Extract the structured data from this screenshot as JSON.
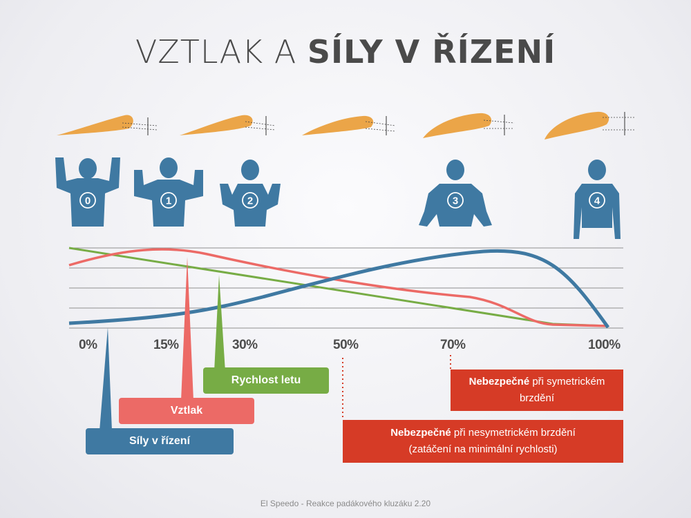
{
  "title": {
    "light": "VZTLAK A ",
    "bold": "SÍLY V ŘÍZENÍ"
  },
  "brake_positions": [
    "0",
    "1",
    "2",
    "3",
    "4"
  ],
  "percent_labels": [
    "0%",
    "15%",
    "30%",
    "50%",
    "70%",
    "100%"
  ],
  "callouts": {
    "rychlost": "Rychlost letu",
    "vztlak": "Vztlak",
    "sily": "Síly v řízení"
  },
  "warnings": {
    "symmetric": {
      "bold": "Nebezpečné",
      "line1": " při symetrickém",
      "line2": "brzdění"
    },
    "asymmetric": {
      "bold": "Nebezpečné",
      "line1": " při nesymetrickém brzdění",
      "line2": "(zatáčení na minimální rychlosti)"
    }
  },
  "colors": {
    "blue": "#3f79a2",
    "salmon": "#ec6a66",
    "green": "#77ac45",
    "red": "#d63b26",
    "orange": "#eba548",
    "grid": "#8f8f8f"
  },
  "footer": "El Speedo - Reakce padákového kluzáku 2.20"
}
